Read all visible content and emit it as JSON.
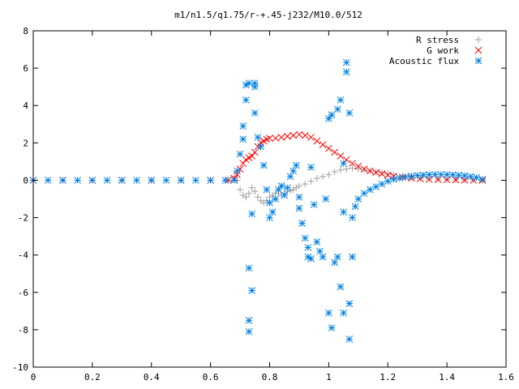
{
  "chart_data": {
    "type": "scatter",
    "title": "m1/n1.5/q1.75/r-+.45-j232/M10.0/512",
    "xlabel": "",
    "ylabel": "",
    "xlim": [
      0,
      1.6
    ],
    "ylim": [
      -10,
      8
    ],
    "xticks": [
      "0",
      "0.2",
      "0.4",
      "0.6",
      "0.8",
      "1",
      "1.2",
      "1.4",
      "1.6"
    ],
    "yticks": [
      "-10",
      "-8",
      "-6",
      "-4",
      "-2",
      "0",
      "2",
      "4",
      "6",
      "8"
    ],
    "grid": false,
    "legend_position": "top-right",
    "series": [
      {
        "name": "R stress",
        "marker": "plus",
        "color": "#a0a0a0",
        "points": [
          [
            0.0,
            0.0
          ],
          [
            0.1,
            0.0
          ],
          [
            0.2,
            0.0
          ],
          [
            0.3,
            0.0
          ],
          [
            0.4,
            0.0
          ],
          [
            0.5,
            0.0
          ],
          [
            0.6,
            0.0
          ],
          [
            0.66,
            0.0
          ],
          [
            0.68,
            0.2
          ],
          [
            0.69,
            0.0
          ],
          [
            0.7,
            -0.5
          ],
          [
            0.71,
            -0.8
          ],
          [
            0.72,
            -0.9
          ],
          [
            0.73,
            -0.7
          ],
          [
            0.74,
            -0.4
          ],
          [
            0.75,
            -0.6
          ],
          [
            0.76,
            -0.9
          ],
          [
            0.77,
            -1.1
          ],
          [
            0.78,
            -1.2
          ],
          [
            0.79,
            -1.1
          ],
          [
            0.8,
            -0.9
          ],
          [
            0.81,
            -0.8
          ],
          [
            0.82,
            -0.7
          ],
          [
            0.83,
            -0.7
          ],
          [
            0.84,
            -0.8
          ],
          [
            0.85,
            -0.7
          ],
          [
            0.86,
            -0.6
          ],
          [
            0.87,
            -0.55
          ],
          [
            0.88,
            -0.5
          ],
          [
            0.89,
            -0.4
          ],
          [
            0.9,
            -0.3
          ],
          [
            0.92,
            -0.2
          ],
          [
            0.94,
            -0.05
          ],
          [
            0.96,
            0.1
          ],
          [
            0.98,
            0.2
          ],
          [
            1.0,
            0.3
          ],
          [
            1.02,
            0.45
          ],
          [
            1.04,
            0.55
          ],
          [
            1.06,
            0.6
          ],
          [
            1.08,
            0.65
          ],
          [
            1.1,
            0.6
          ],
          [
            1.12,
            0.55
          ],
          [
            1.14,
            0.5
          ],
          [
            1.16,
            0.45
          ],
          [
            1.18,
            0.4
          ],
          [
            1.2,
            0.35
          ],
          [
            1.22,
            0.3
          ],
          [
            1.25,
            0.22
          ],
          [
            1.28,
            0.15
          ],
          [
            1.31,
            0.1
          ],
          [
            1.34,
            0.07
          ],
          [
            1.37,
            0.05
          ],
          [
            1.4,
            0.04
          ],
          [
            1.43,
            0.03
          ],
          [
            1.46,
            0.02
          ],
          [
            1.49,
            0.01
          ],
          [
            1.52,
            0.0
          ]
        ]
      },
      {
        "name": "G work",
        "marker": "cross",
        "color": "#ff0000",
        "points": [
          [
            0.0,
            0.0
          ],
          [
            0.1,
            0.0
          ],
          [
            0.2,
            0.0
          ],
          [
            0.3,
            0.0
          ],
          [
            0.4,
            0.0
          ],
          [
            0.5,
            0.0
          ],
          [
            0.6,
            0.0
          ],
          [
            0.66,
            0.0
          ],
          [
            0.68,
            0.1
          ],
          [
            0.69,
            0.3
          ],
          [
            0.7,
            0.6
          ],
          [
            0.71,
            0.9
          ],
          [
            0.72,
            1.1
          ],
          [
            0.73,
            1.2
          ],
          [
            0.74,
            1.3
          ],
          [
            0.75,
            1.5
          ],
          [
            0.76,
            1.8
          ],
          [
            0.77,
            2.0
          ],
          [
            0.78,
            2.1
          ],
          [
            0.79,
            2.2
          ],
          [
            0.8,
            2.25
          ],
          [
            0.82,
            2.25
          ],
          [
            0.84,
            2.3
          ],
          [
            0.86,
            2.35
          ],
          [
            0.88,
            2.4
          ],
          [
            0.9,
            2.45
          ],
          [
            0.92,
            2.4
          ],
          [
            0.94,
            2.3
          ],
          [
            0.96,
            2.1
          ],
          [
            0.98,
            1.9
          ],
          [
            1.0,
            1.7
          ],
          [
            1.02,
            1.5
          ],
          [
            1.04,
            1.3
          ],
          [
            1.06,
            1.1
          ],
          [
            1.08,
            0.9
          ],
          [
            1.1,
            0.75
          ],
          [
            1.12,
            0.6
          ],
          [
            1.14,
            0.5
          ],
          [
            1.16,
            0.42
          ],
          [
            1.18,
            0.35
          ],
          [
            1.2,
            0.28
          ],
          [
            1.22,
            0.22
          ],
          [
            1.25,
            0.16
          ],
          [
            1.28,
            0.11
          ],
          [
            1.31,
            0.08
          ],
          [
            1.34,
            0.05
          ],
          [
            1.37,
            0.04
          ],
          [
            1.4,
            0.03
          ],
          [
            1.43,
            0.02
          ],
          [
            1.46,
            0.01
          ],
          [
            1.49,
            0.0
          ],
          [
            1.52,
            0.0
          ]
        ]
      },
      {
        "name": "Acoustic flux",
        "marker": "star",
        "color": "#0080e0",
        "points": [
          [
            0.0,
            0.0
          ],
          [
            0.05,
            0.0
          ],
          [
            0.1,
            0.0
          ],
          [
            0.15,
            0.0
          ],
          [
            0.2,
            0.0
          ],
          [
            0.25,
            0.0
          ],
          [
            0.3,
            0.0
          ],
          [
            0.35,
            0.0
          ],
          [
            0.4,
            0.0
          ],
          [
            0.45,
            0.0
          ],
          [
            0.5,
            0.0
          ],
          [
            0.55,
            0.0
          ],
          [
            0.6,
            0.0
          ],
          [
            0.65,
            0.0
          ],
          [
            0.68,
            0.0
          ],
          [
            0.69,
            0.5
          ],
          [
            0.7,
            1.4
          ],
          [
            0.71,
            2.2
          ],
          [
            0.71,
            2.9
          ],
          [
            0.72,
            4.3
          ],
          [
            0.72,
            5.1
          ],
          [
            0.73,
            5.2
          ],
          [
            0.73,
            -4.7
          ],
          [
            0.73,
            -7.5
          ],
          [
            0.73,
            -8.1
          ],
          [
            0.74,
            -5.9
          ],
          [
            0.74,
            -1.8
          ],
          [
            0.75,
            5.2
          ],
          [
            0.75,
            5.0
          ],
          [
            0.75,
            3.6
          ],
          [
            0.76,
            2.3
          ],
          [
            0.77,
            1.8
          ],
          [
            0.78,
            0.8
          ],
          [
            0.79,
            -0.5
          ],
          [
            0.8,
            -1.2
          ],
          [
            0.8,
            -2.0
          ],
          [
            0.81,
            -1.7
          ],
          [
            0.82,
            -1.0
          ],
          [
            0.83,
            -0.5
          ],
          [
            0.84,
            -0.3
          ],
          [
            0.85,
            -0.8
          ],
          [
            0.86,
            -0.4
          ],
          [
            0.87,
            0.2
          ],
          [
            0.88,
            0.5
          ],
          [
            0.89,
            0.8
          ],
          [
            0.9,
            -0.9
          ],
          [
            0.9,
            -1.5
          ],
          [
            0.91,
            -2.3
          ],
          [
            0.92,
            -3.1
          ],
          [
            0.93,
            -3.6
          ],
          [
            0.93,
            -4.1
          ],
          [
            0.94,
            -4.2
          ],
          [
            0.94,
            0.7
          ],
          [
            0.95,
            -1.3
          ],
          [
            0.96,
            -3.3
          ],
          [
            0.97,
            -3.8
          ],
          [
            0.98,
            -4.1
          ],
          [
            0.99,
            -1.0
          ],
          [
            1.0,
            3.3
          ],
          [
            1.0,
            -7.1
          ],
          [
            1.01,
            -7.9
          ],
          [
            1.01,
            3.5
          ],
          [
            1.02,
            -4.4
          ],
          [
            1.03,
            -4.1
          ],
          [
            1.03,
            3.8
          ],
          [
            1.04,
            4.3
          ],
          [
            1.04,
            -5.7
          ],
          [
            1.05,
            -7.1
          ],
          [
            1.05,
            0.9
          ],
          [
            1.05,
            -1.7
          ],
          [
            1.06,
            6.3
          ],
          [
            1.06,
            5.8
          ],
          [
            1.07,
            3.6
          ],
          [
            1.07,
            -6.6
          ],
          [
            1.07,
            -8.5
          ],
          [
            1.08,
            -4.1
          ],
          [
            1.08,
            -2.0
          ],
          [
            1.09,
            -1.4
          ],
          [
            1.1,
            -1.0
          ],
          [
            1.12,
            -0.7
          ],
          [
            1.14,
            -0.5
          ],
          [
            1.16,
            -0.35
          ],
          [
            1.18,
            -0.2
          ],
          [
            1.2,
            -0.05
          ],
          [
            1.22,
            0.05
          ],
          [
            1.24,
            0.12
          ],
          [
            1.26,
            0.18
          ],
          [
            1.28,
            0.22
          ],
          [
            1.3,
            0.26
          ],
          [
            1.32,
            0.28
          ],
          [
            1.34,
            0.3
          ],
          [
            1.36,
            0.31
          ],
          [
            1.38,
            0.31
          ],
          [
            1.4,
            0.3
          ],
          [
            1.42,
            0.29
          ],
          [
            1.44,
            0.27
          ],
          [
            1.46,
            0.24
          ],
          [
            1.48,
            0.2
          ],
          [
            1.5,
            0.15
          ],
          [
            1.52,
            0.05
          ]
        ]
      }
    ]
  }
}
